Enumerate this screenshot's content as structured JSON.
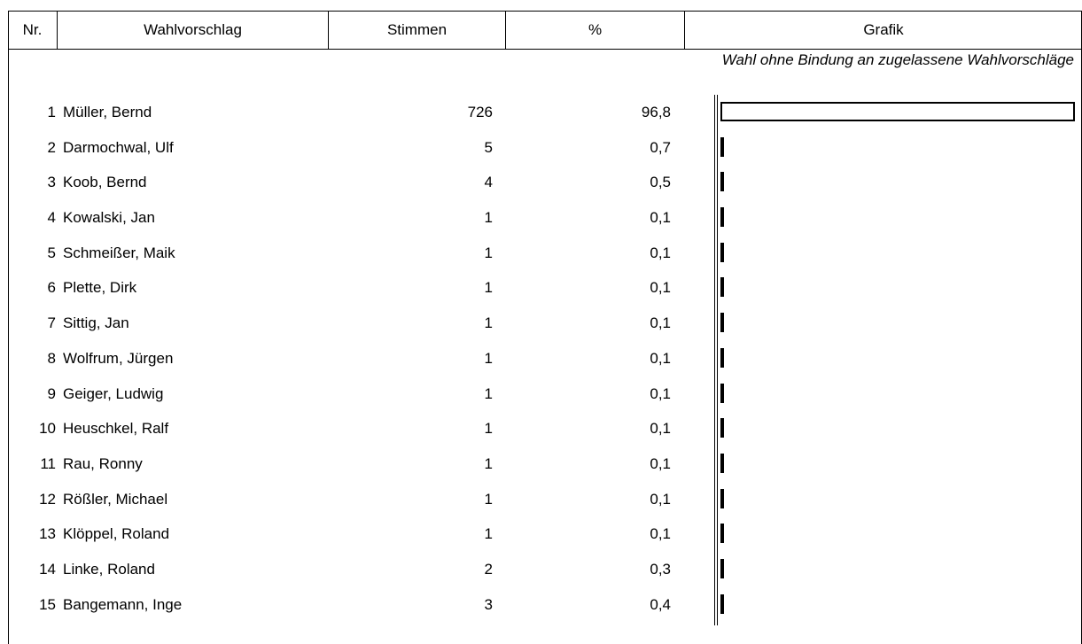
{
  "header": {
    "nr": "Nr.",
    "wahlvorschlag": "Wahlvorschlag",
    "stimmen": "Stimmen",
    "prozent": "%",
    "grafik": "Grafik"
  },
  "subtitle": "Wahl ohne Bindung an zugelassene Wahlvorschläge",
  "rows": [
    {
      "nr": "1",
      "name": "Müller, Bernd",
      "stimmen": "726",
      "prozent": "96,8",
      "share": 96.8
    },
    {
      "nr": "2",
      "name": "Darmochwal, Ulf",
      "stimmen": "5",
      "prozent": "0,7",
      "share": 0.7
    },
    {
      "nr": "3",
      "name": "Koob, Bernd",
      "stimmen": "4",
      "prozent": "0,5",
      "share": 0.5
    },
    {
      "nr": "4",
      "name": "Kowalski, Jan",
      "stimmen": "1",
      "prozent": "0,1",
      "share": 0.1
    },
    {
      "nr": "5",
      "name": "Schmeißer, Maik",
      "stimmen": "1",
      "prozent": "0,1",
      "share": 0.1
    },
    {
      "nr": "6",
      "name": "Plette, Dirk",
      "stimmen": "1",
      "prozent": "0,1",
      "share": 0.1
    },
    {
      "nr": "7",
      "name": "Sittig, Jan",
      "stimmen": "1",
      "prozent": "0,1",
      "share": 0.1
    },
    {
      "nr": "8",
      "name": "Wolfrum, Jürgen",
      "stimmen": "1",
      "prozent": "0,1",
      "share": 0.1
    },
    {
      "nr": "9",
      "name": "Geiger, Ludwig",
      "stimmen": "1",
      "prozent": "0,1",
      "share": 0.1
    },
    {
      "nr": "10",
      "name": "Heuschkel, Ralf",
      "stimmen": "1",
      "prozent": "0,1",
      "share": 0.1
    },
    {
      "nr": "11",
      "name": "Rau, Ronny",
      "stimmen": "1",
      "prozent": "0,1",
      "share": 0.1
    },
    {
      "nr": "12",
      "name": "Rößler, Michael",
      "stimmen": "1",
      "prozent": "0,1",
      "share": 0.1
    },
    {
      "nr": "13",
      "name": "Klöppel, Roland",
      "stimmen": "1",
      "prozent": "0,1",
      "share": 0.1
    },
    {
      "nr": "14",
      "name": "Linke, Roland",
      "stimmen": "2",
      "prozent": "0,3",
      "share": 0.3
    },
    {
      "nr": "15",
      "name": "Bangemann, Inge",
      "stimmen": "3",
      "prozent": "0,4",
      "share": 0.4
    }
  ]
}
